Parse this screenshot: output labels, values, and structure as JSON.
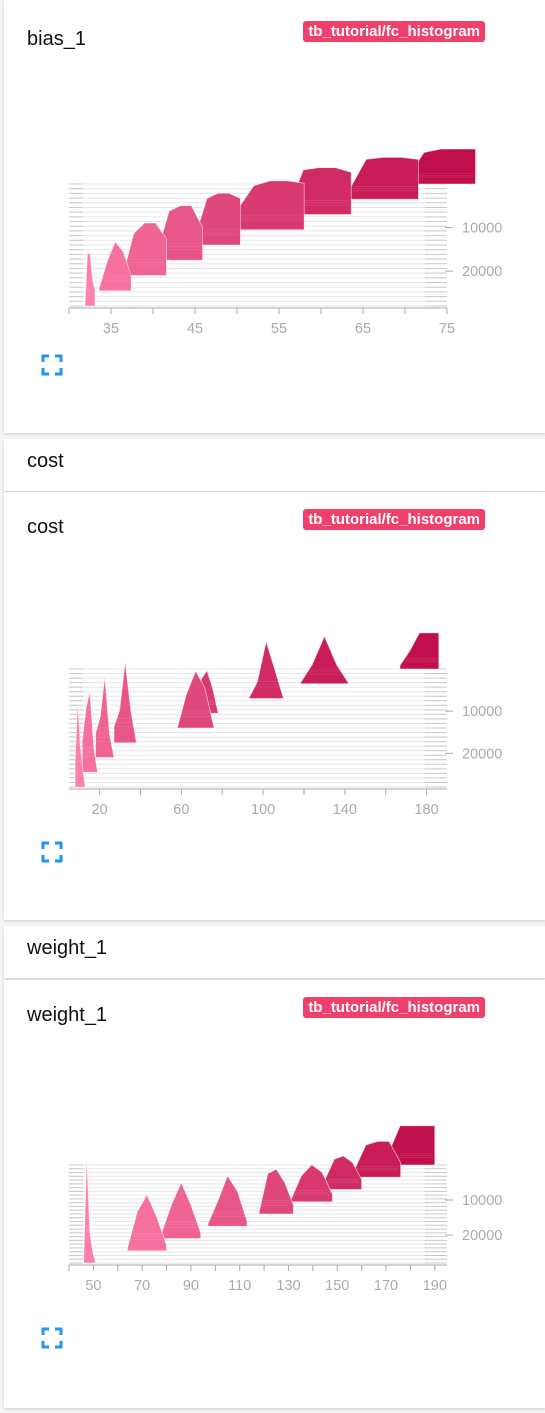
{
  "section_headers": [
    "cost",
    "weight_1"
  ],
  "colors": {
    "recent": "#c10f4e",
    "early": "#ff7fac",
    "badge": "#ef3f6b",
    "expand_icon": "#2196f3"
  },
  "charts": [
    {
      "title": "bias_1",
      "run": "tb_tutorial/fc_histogram"
    },
    {
      "title": "cost",
      "run": "tb_tutorial/fc_histogram"
    },
    {
      "title": "weight_1",
      "run": "tb_tutorial/fc_histogram"
    }
  ],
  "chart_data": [
    {
      "type": "histogram",
      "title": "bias_1",
      "x_ticks": [
        35,
        45,
        55,
        65,
        75
      ],
      "x_range": [
        30,
        75
      ],
      "y_ticks": [
        10000,
        20000
      ],
      "y_range": [
        0,
        28000
      ],
      "steps": [
        {
          "step": 0,
          "lo": 31.9,
          "hi": 33.1,
          "peak": 0.75,
          "shape": [
            0,
            1,
            1,
            0.5,
            0.3
          ]
        },
        {
          "step": 600,
          "lo": 33.6,
          "hi": 37.4,
          "peak": 0.7,
          "shape": [
            0.05,
            0.6,
            1,
            0.8,
            0.3
          ]
        },
        {
          "step": 1500,
          "lo": 36.4,
          "hi": 41.6,
          "peak": 0.75,
          "shape": [
            0,
            0.8,
            1,
            1,
            0.7
          ]
        },
        {
          "step": 2400,
          "lo": 40.6,
          "hi": 45.9,
          "peak": 0.78,
          "shape": [
            0.2,
            0.9,
            1,
            1,
            0.6
          ]
        },
        {
          "step": 3600,
          "lo": 45.1,
          "hi": 50.4,
          "peak": 0.74,
          "shape": [
            0.2,
            0.9,
            1,
            1,
            0.9
          ]
        },
        {
          "step": 4800,
          "lo": 50.0,
          "hi": 58.0,
          "peak": 0.7,
          "shape": [
            0.4,
            0.9,
            1,
            1,
            0.95
          ]
        },
        {
          "step": 6000,
          "lo": 56.0,
          "hi": 63.6,
          "peak": 0.67,
          "shape": [
            0.1,
            0.95,
            1,
            1,
            0.9
          ]
        },
        {
          "step": 7200,
          "lo": 63.3,
          "hi": 71.6,
          "peak": 0.6,
          "shape": [
            0.2,
            0.95,
            1,
            1,
            0.95
          ]
        },
        {
          "step": 8400,
          "lo": 70.2,
          "hi": 78.4,
          "peak": 0.5,
          "shape": [
            0.15,
            0.9,
            1,
            1,
            1
          ]
        }
      ]
    },
    {
      "type": "histogram",
      "title": "cost",
      "x_ticks": [
        20,
        60,
        100,
        140,
        180
      ],
      "x_range": [
        5,
        190
      ],
      "y_ticks": [
        10000,
        20000
      ],
      "y_range": [
        0,
        28000
      ],
      "steps": [
        {
          "step": 0,
          "lo": 8.0,
          "hi": 13.0,
          "peak": 0.9,
          "shape": [
            0.3,
            1,
            0.5,
            0.2,
            0
          ]
        },
        {
          "step": 400,
          "lo": 11.5,
          "hi": 19.0,
          "peak": 0.85,
          "shape": [
            0.4,
            0.8,
            1,
            0.3,
            0
          ]
        },
        {
          "step": 900,
          "lo": 18.0,
          "hi": 27.0,
          "peak": 0.85,
          "shape": [
            0.3,
            0.5,
            1,
            0.3,
            0
          ]
        },
        {
          "step": 1500,
          "lo": 27.0,
          "hi": 38.0,
          "peak": 0.85,
          "shape": [
            0.2,
            0.4,
            1,
            0.4,
            0
          ]
        },
        {
          "step": 2400,
          "lo": 58.0,
          "hi": 76.0,
          "peak": 0.6,
          "shape": [
            0,
            0.6,
            1,
            0.7,
            0
          ]
        },
        {
          "step": 2700,
          "lo": 67.0,
          "hi": 78.0,
          "peak": 0.45,
          "shape": [
            0,
            0.8,
            1,
            0.6,
            0
          ]
        },
        {
          "step": 3900,
          "lo": 93.0,
          "hi": 110.0,
          "peak": 0.6,
          "shape": [
            0,
            0.3,
            1,
            0.5,
            0
          ]
        },
        {
          "step": 5100,
          "lo": 118.0,
          "hi": 142.0,
          "peak": 0.5,
          "shape": [
            0,
            0.4,
            1,
            0.4,
            0
          ]
        },
        {
          "step": 7200,
          "lo": 167.0,
          "hi": 186.0,
          "peak": 0.38,
          "shape": [
            0.1,
            0.5,
            1,
            1,
            1
          ]
        }
      ]
    },
    {
      "type": "histogram",
      "title": "weight_1",
      "x_ticks": [
        50,
        70,
        90,
        110,
        130,
        150,
        170,
        190
      ],
      "x_range": [
        40,
        195
      ],
      "y_ticks": [
        10000,
        20000
      ],
      "y_range": [
        0,
        28000
      ],
      "steps": [
        {
          "step": 0,
          "lo": 46.0,
          "hi": 51.0,
          "peak": 0.95,
          "shape": [
            0,
            1,
            0.3,
            0.1,
            0
          ]
        },
        {
          "step": 1200,
          "lo": 64.0,
          "hi": 80.0,
          "peak": 0.5,
          "shape": [
            0.05,
            0.7,
            1,
            0.6,
            0.1
          ]
        },
        {
          "step": 1800,
          "lo": 78.0,
          "hi": 94.0,
          "peak": 0.5,
          "shape": [
            0.1,
            0.6,
            1,
            0.6,
            0.1
          ]
        },
        {
          "step": 2700,
          "lo": 97.0,
          "hi": 113.0,
          "peak": 0.45,
          "shape": [
            0.05,
            0.5,
            1,
            0.7,
            0.1
          ]
        },
        {
          "step": 3600,
          "lo": 118.0,
          "hi": 132.0,
          "peak": 0.4,
          "shape": [
            0.05,
            0.9,
            1,
            0.7,
            0.2
          ]
        },
        {
          "step": 4500,
          "lo": 131.0,
          "hi": 148.0,
          "peak": 0.33,
          "shape": [
            0.05,
            0.7,
            1,
            0.8,
            0.2
          ]
        },
        {
          "step": 5400,
          "lo": 145.0,
          "hi": 160.0,
          "peak": 0.3,
          "shape": [
            0.3,
            0.9,
            1,
            0.8,
            0.3
          ]
        },
        {
          "step": 6300,
          "lo": 157.0,
          "hi": 176.0,
          "peak": 0.32,
          "shape": [
            0.2,
            0.9,
            1,
            1,
            0.4
          ]
        },
        {
          "step": 7200,
          "lo": 171.0,
          "hi": 190.0,
          "peak": 0.35,
          "shape": [
            0.3,
            1,
            1,
            1,
            1
          ]
        }
      ]
    }
  ]
}
